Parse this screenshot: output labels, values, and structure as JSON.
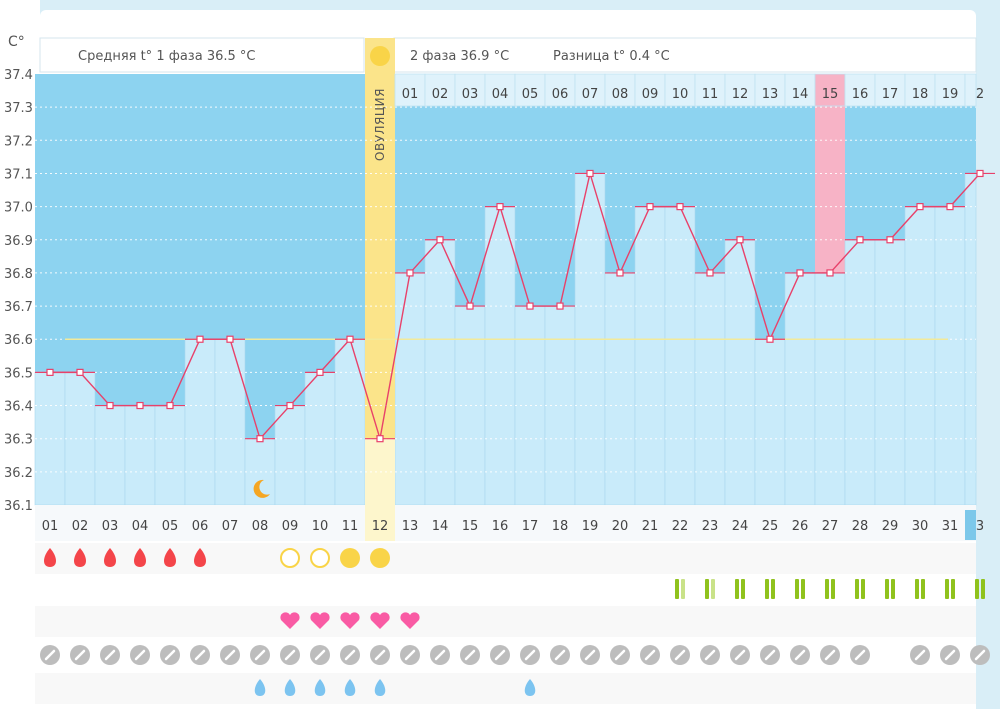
{
  "chart_data": {
    "type": "line",
    "unit_label": "C°",
    "phase1_label": "Средняя t° 1 фаза 36.5 °C",
    "phase2_label": "2 фаза 36.9 °C",
    "diff_label": "Разница t° 0.4 °C",
    "ovulation_label": "ОВУЛЯЦИЯ",
    "ovulation_day": 12,
    "highlight_day": 27,
    "ylim": [
      36.1,
      37.4
    ],
    "yticks": [
      "37.4",
      "37.3",
      "37.2",
      "37.1",
      "37.0",
      "36.9",
      "36.8",
      "36.7",
      "36.6",
      "36.5",
      "36.4",
      "36.3",
      "36.2",
      "36.1"
    ],
    "coverline": 36.6,
    "days": [
      "01",
      "02",
      "03",
      "04",
      "05",
      "06",
      "07",
      "08",
      "09",
      "10",
      "11",
      "12",
      "13",
      "14",
      "15",
      "16",
      "17",
      "18",
      "19",
      "20",
      "21",
      "22",
      "23",
      "24",
      "25",
      "26",
      "27",
      "28",
      "29",
      "30",
      "31",
      "3"
    ],
    "phase2_days": [
      "01",
      "02",
      "03",
      "04",
      "05",
      "06",
      "07",
      "08",
      "09",
      "10",
      "11",
      "12",
      "13",
      "14",
      "15",
      "16",
      "17",
      "18",
      "19",
      "2"
    ],
    "values": [
      36.5,
      36.5,
      36.4,
      36.4,
      36.4,
      36.6,
      36.6,
      36.3,
      36.4,
      36.5,
      36.6,
      36.3,
      36.8,
      36.9,
      36.7,
      37.0,
      36.7,
      36.7,
      37.1,
      36.8,
      37.0,
      37.0,
      36.8,
      36.9,
      36.6,
      36.8,
      36.8,
      36.9,
      36.9,
      37.0,
      37.0,
      37.1
    ],
    "moon_day": 8,
    "rows": {
      "bleeding": [
        1,
        2,
        3,
        4,
        5,
        6
      ],
      "circles_outline": [
        9,
        10
      ],
      "circles_filled": [
        11,
        12
      ],
      "discharge": {
        "22": "mix",
        "23": "mix",
        "24": "full",
        "25": "full",
        "26": "full",
        "27": "full",
        "28": "full",
        "29": "full",
        "30": "full",
        "31": "full",
        "32": "full"
      },
      "hearts": [
        9,
        10,
        11,
        12,
        13
      ],
      "pills": [
        1,
        2,
        3,
        4,
        5,
        6,
        7,
        8,
        9,
        10,
        11,
        12,
        13,
        14,
        15,
        16,
        17,
        18,
        19,
        20,
        21,
        22,
        23,
        24,
        25,
        26,
        27,
        28,
        30,
        31,
        32
      ],
      "drops": [
        8,
        9,
        10,
        11,
        12,
        17
      ]
    }
  },
  "colors": {
    "sky": "#8dd3f0",
    "bar": "#c9ebfa",
    "grid": "#ffffff",
    "line": "#e8416a",
    "ovulation": "#fbe48a",
    "ovulation_light": "#fdf6cc",
    "highlight": "#f7b3c6",
    "coverline": "#f2ea9a",
    "blood": "#f4454a",
    "sun": "#f9d448",
    "heart": "#f95ba4",
    "pill": "#bdbdbd",
    "drop": "#7cc4f0",
    "green": "#8fc21d",
    "green_light": "#c9e289"
  }
}
